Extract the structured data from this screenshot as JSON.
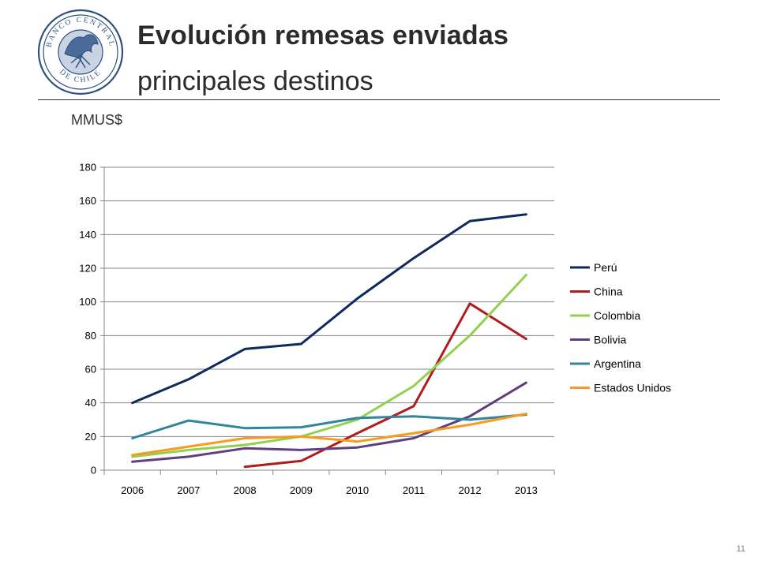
{
  "header": {
    "title": "Evolución remesas enviadas",
    "subtitle": "principales destinos",
    "logo_text_top": "BANCO CENTRAL",
    "logo_text_bottom": "DE CHILE"
  },
  "unit_label": "MMUS$",
  "page_number": "11",
  "chart_data": {
    "type": "line",
    "title": "",
    "xlabel": "",
    "ylabel": "",
    "categories": [
      "2006",
      "2007",
      "2008",
      "2009",
      "2010",
      "2011",
      "2012",
      "2013"
    ],
    "ylim": [
      0,
      180
    ],
    "yticks": [
      0,
      20,
      40,
      60,
      80,
      100,
      120,
      140,
      160,
      180
    ],
    "grid": true,
    "legend_position": "right",
    "series": [
      {
        "name": "Perú",
        "color": "#0d2a5c",
        "values": [
          40,
          54,
          72,
          75,
          102,
          126,
          148,
          152
        ]
      },
      {
        "name": "China",
        "color": "#b01c1c",
        "values": [
          null,
          null,
          2,
          5.5,
          22,
          38,
          99,
          78
        ]
      },
      {
        "name": "Colombia",
        "color": "#92d050",
        "values": [
          8,
          12,
          15,
          20,
          30,
          50,
          80,
          116
        ]
      },
      {
        "name": "Bolivia",
        "color": "#5f3f7f",
        "values": [
          5,
          8,
          13,
          12,
          13.5,
          19,
          32,
          52
        ]
      },
      {
        "name": "Argentina",
        "color": "#31859c",
        "values": [
          19,
          29.5,
          25,
          25.5,
          31,
          32,
          30,
          33
        ]
      },
      {
        "name": "Estados Unidos",
        "color": "#f79b1c",
        "values": [
          9,
          14,
          19,
          20,
          17,
          22,
          27,
          33.5
        ]
      }
    ]
  }
}
